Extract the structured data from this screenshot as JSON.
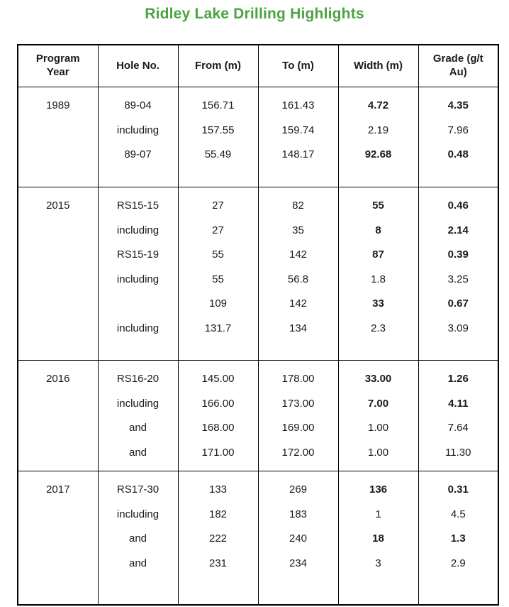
{
  "title": "Ridley Lake Drilling Highlights",
  "colors": {
    "title_green": "#4ba440",
    "text": "#1a1a1a",
    "border": "#000000",
    "background": "#ffffff"
  },
  "table": {
    "headers": [
      "Program Year",
      "Hole No.",
      "From (m)",
      "To (m)",
      "Width (m)",
      "Grade (g/t Au)"
    ],
    "groups": [
      {
        "year": "1989",
        "rows": [
          {
            "hole": "89-04",
            "from": "156.71",
            "to": "161.43",
            "width": "4.72",
            "grade": "4.35",
            "emphasis": true
          },
          {
            "hole": "including",
            "from": "157.55",
            "to": "159.74",
            "width": "2.19",
            "grade": "7.96",
            "emphasis": false
          },
          {
            "hole": "89-07",
            "from": "55.49",
            "to": "148.17",
            "width": "92.68",
            "grade": "0.48",
            "emphasis": true
          }
        ]
      },
      {
        "year": "2015",
        "rows": [
          {
            "hole": "RS15-15",
            "from": "27",
            "to": "82",
            "width": "55",
            "grade": "0.46",
            "emphasis": true
          },
          {
            "hole": "including",
            "from": "27",
            "to": "35",
            "width": "8",
            "grade": "2.14",
            "emphasis": true
          },
          {
            "hole": "RS15-19",
            "from": "55",
            "to": "142",
            "width": "87",
            "grade": "0.39",
            "emphasis": true
          },
          {
            "hole": "including",
            "from": "55",
            "to": "56.8",
            "width": "1.8",
            "grade": "3.25",
            "emphasis": false
          },
          {
            "hole": "",
            "from": "109",
            "to": "142",
            "width": "33",
            "grade": "0.67",
            "emphasis": true
          },
          {
            "hole": "including",
            "from": "131.7",
            "to": "134",
            "width": "2.3",
            "grade": "3.09",
            "emphasis": false
          }
        ]
      },
      {
        "year": "2016",
        "rows": [
          {
            "hole": "RS16-20",
            "from": "145.00",
            "to": "178.00",
            "width": "33.00",
            "grade": "1.26",
            "emphasis": true
          },
          {
            "hole": "including",
            "from": "166.00",
            "to": "173.00",
            "width": "7.00",
            "grade": "4.11",
            "emphasis": true
          },
          {
            "hole": "and",
            "from": "168.00",
            "to": "169.00",
            "width": "1.00",
            "grade": "7.64",
            "emphasis": false
          },
          {
            "hole": "and",
            "from": "171.00",
            "to": "172.00",
            "width": "1.00",
            "grade": "11.30",
            "emphasis": false
          }
        ]
      },
      {
        "year": "2017",
        "rows": [
          {
            "hole": "RS17-30",
            "from": "133",
            "to": "269",
            "width": "136",
            "grade": "0.31",
            "emphasis": true
          },
          {
            "hole": "including",
            "from": "182",
            "to": "183",
            "width": "1",
            "grade": "4.5",
            "emphasis": false
          },
          {
            "hole": "and",
            "from": "222",
            "to": "240",
            "width": "18",
            "grade": "1.3",
            "emphasis": true
          },
          {
            "hole": "and",
            "from": "231",
            "to": "234",
            "width": "3",
            "grade": "2.9",
            "emphasis": false
          }
        ]
      }
    ]
  }
}
